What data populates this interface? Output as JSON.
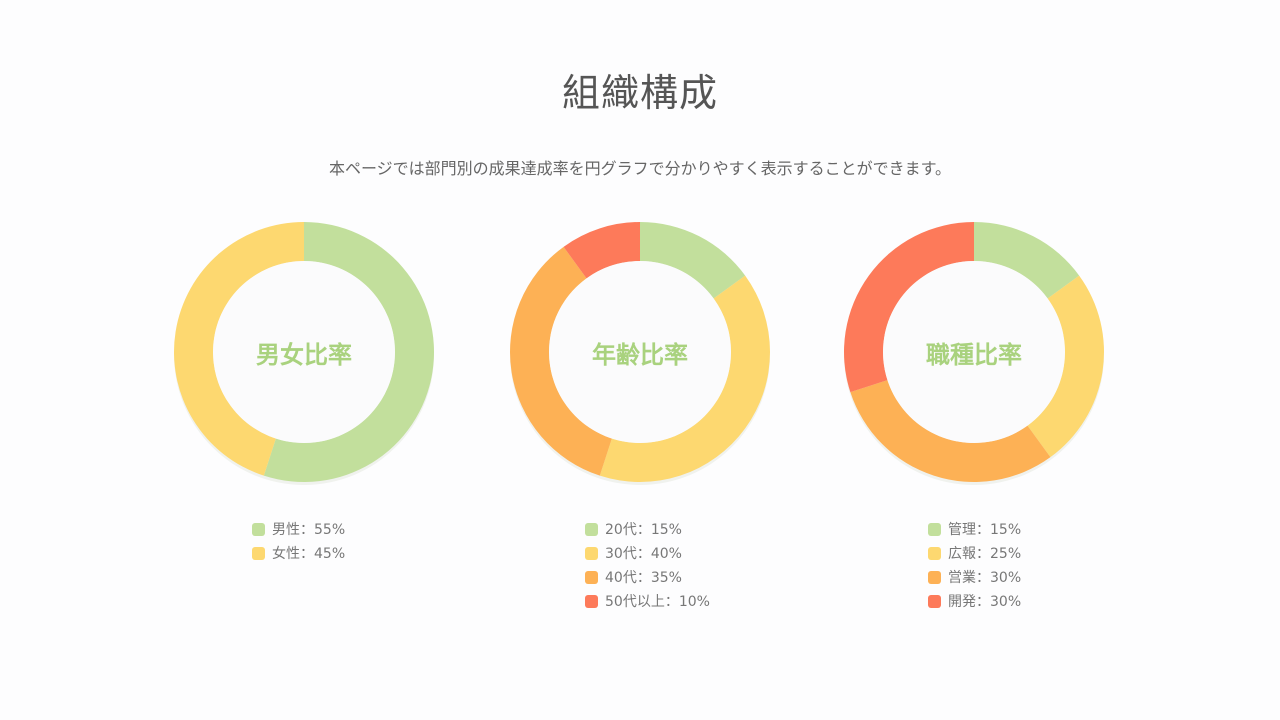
{
  "title": "組織構成",
  "subtitle": "本ページでは部門別の成果達成率を円グラフで分かりやすく表示することができます。",
  "colors": {
    "green": "#c2df9c",
    "yellow": "#fdd870",
    "orange": "#fdb155",
    "red": "#fd7a5a",
    "label": "#a9d27e"
  },
  "chart_data": [
    {
      "type": "pie",
      "donut": true,
      "title": "男女比率",
      "categories": [
        "男性",
        "女性"
      ],
      "values": [
        55,
        45
      ],
      "colors": [
        "#c2df9c",
        "#fdd870"
      ],
      "legend": [
        "男性：55%",
        "女性：45%"
      ]
    },
    {
      "type": "pie",
      "donut": true,
      "title": "年齢比率",
      "categories": [
        "20代",
        "30代",
        "40代",
        "50代以上"
      ],
      "values": [
        15,
        40,
        35,
        10
      ],
      "colors": [
        "#c2df9c",
        "#fdd870",
        "#fdb155",
        "#fd7a5a"
      ],
      "legend": [
        "20代：15%",
        "30代：40%",
        "40代：35%",
        "50代以上：10%"
      ]
    },
    {
      "type": "pie",
      "donut": true,
      "title": "職種比率",
      "categories": [
        "管理",
        "広報",
        "営業",
        "開発"
      ],
      "values": [
        15,
        25,
        30,
        30
      ],
      "colors": [
        "#c2df9c",
        "#fdd870",
        "#fdb155",
        "#fd7a5a"
      ],
      "legend": [
        "管理：15%",
        "広報：25%",
        "営業：30%",
        "開発：30%"
      ]
    }
  ]
}
